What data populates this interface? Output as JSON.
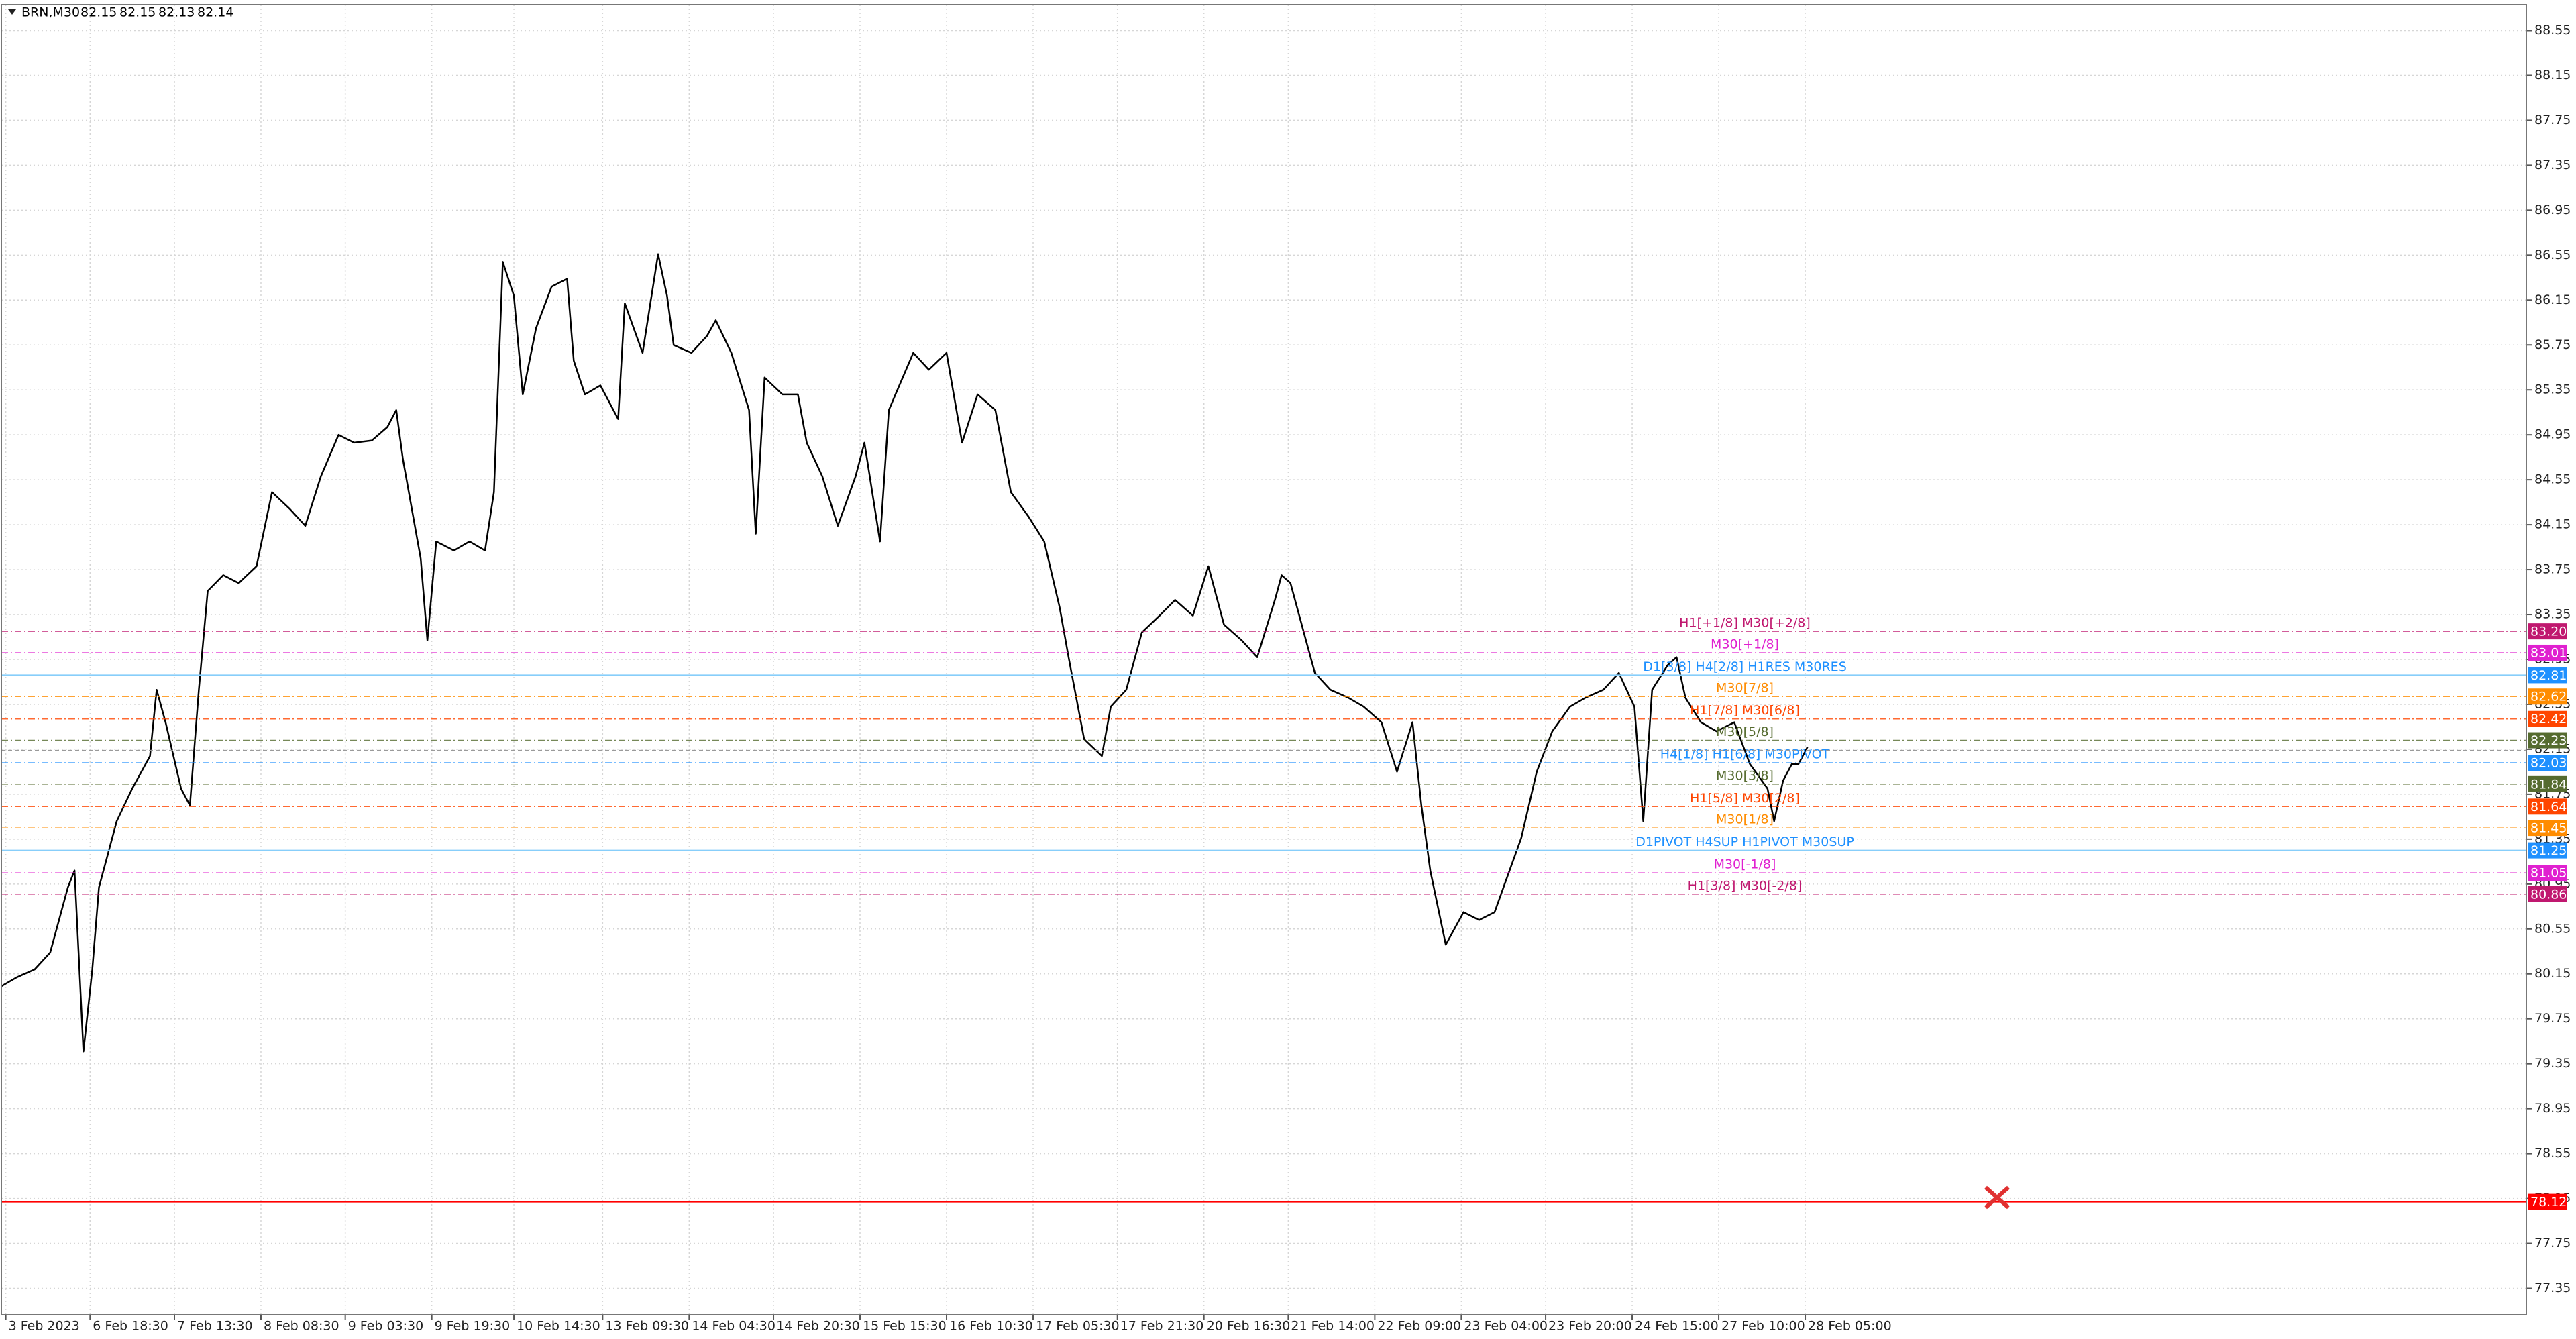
{
  "chart_data": {
    "type": "line",
    "title": "BRN,M30",
    "ohlc": [
      82.15,
      82.15,
      82.13,
      82.14
    ],
    "color": "#000000",
    "grid": true,
    "xlim": [
      0,
      1138
    ],
    "ylim": [
      77.12,
      88.78
    ],
    "xticks": [
      {
        "value": 2,
        "label": "3 Feb 2023"
      },
      {
        "value": 40,
        "label": "6 Feb 18:30"
      },
      {
        "value": 78,
        "label": "7 Feb 13:30"
      },
      {
        "value": 117,
        "label": "8 Feb 08:30"
      },
      {
        "value": 155,
        "label": "9 Feb 03:30"
      },
      {
        "value": 194,
        "label": "9 Feb 19:30"
      },
      {
        "value": 231,
        "label": "10 Feb 14:30"
      },
      {
        "value": 271,
        "label": "13 Feb 09:30"
      },
      {
        "value": 310,
        "label": "14 Feb 04:30"
      },
      {
        "value": 348,
        "label": "14 Feb 20:30"
      },
      {
        "value": 387,
        "label": "15 Feb 15:30"
      },
      {
        "value": 426,
        "label": "16 Feb 10:30"
      },
      {
        "value": 465,
        "label": "17 Feb 05:30"
      },
      {
        "value": 503,
        "label": "17 Feb 21:30"
      },
      {
        "value": 542,
        "label": "20 Feb 16:30"
      },
      {
        "value": 580,
        "label": "21 Feb 14:00"
      },
      {
        "value": 619,
        "label": "22 Feb 09:00"
      },
      {
        "value": 658,
        "label": "23 Feb 04:00"
      },
      {
        "value": 696,
        "label": "23 Feb 20:00"
      },
      {
        "value": 735,
        "label": "24 Feb 15:00"
      },
      {
        "value": 774,
        "label": "27 Feb 10:00"
      },
      {
        "value": 813,
        "label": "28 Feb 05:00"
      }
    ],
    "yticks": [
      88.55,
      88.15,
      87.75,
      87.35,
      86.95,
      86.55,
      86.15,
      85.75,
      85.35,
      84.95,
      84.55,
      84.15,
      83.75,
      83.35,
      82.95,
      82.55,
      82.15,
      81.75,
      81.35,
      80.95,
      80.55,
      80.15,
      79.75,
      79.35,
      78.95,
      78.55,
      78.15,
      77.75,
      77.35
    ],
    "x": [
      0,
      7,
      15,
      22,
      30,
      33,
      37,
      41,
      44,
      52,
      59,
      67,
      70,
      74,
      81,
      85,
      89,
      93,
      100,
      107,
      115,
      122,
      130,
      137,
      144,
      152,
      159,
      167,
      174,
      178,
      181,
      189,
      192,
      196,
      204,
      211,
      218,
      222,
      226,
      231,
      235,
      241,
      248,
      255,
      258,
      263,
      270,
      278,
      281,
      289,
      296,
      300,
      303,
      311,
      318,
      322,
      329,
      337,
      340,
      344,
      352,
      359,
      363,
      370,
      377,
      385,
      389,
      396,
      400,
      403,
      411,
      418,
      426,
      433,
      440,
      448,
      455,
      463,
      470,
      477,
      481,
      488,
      496,
      500,
      507,
      514,
      522,
      529,
      537,
      544,
      551,
      559,
      566,
      574,
      577,
      581,
      588,
      592,
      599,
      607,
      614,
      622,
      629,
      636,
      640,
      644,
      651,
      659,
      666,
      673,
      677,
      685,
      692,
      699,
      707,
      714,
      722,
      729,
      736,
      740,
      744,
      751,
      755,
      759,
      766,
      773,
      781,
      788,
      796,
      799,
      803,
      807,
      810,
      814
    ],
    "values": [
      80.04,
      80.12,
      80.19,
      80.34,
      80.92,
      81.07,
      79.46,
      80.19,
      80.92,
      81.51,
      81.8,
      82.09,
      82.68,
      82.39,
      81.8,
      81.65,
      82.68,
      83.56,
      83.7,
      83.63,
      83.78,
      84.44,
      84.29,
      84.14,
      84.58,
      84.95,
      84.88,
      84.9,
      85.02,
      85.17,
      84.73,
      83.85,
      83.12,
      84.0,
      83.92,
      84.0,
      83.92,
      84.44,
      86.49,
      86.19,
      85.31,
      85.9,
      86.27,
      86.34,
      85.61,
      85.31,
      85.39,
      85.09,
      86.12,
      85.68,
      86.56,
      86.19,
      85.75,
      85.68,
      85.83,
      85.97,
      85.68,
      85.17,
      84.07,
      85.46,
      85.31,
      85.31,
      84.88,
      84.58,
      84.14,
      84.58,
      84.88,
      84.0,
      85.17,
      85.31,
      85.68,
      85.53,
      85.68,
      84.88,
      85.31,
      85.17,
      84.44,
      84.22,
      84.0,
      83.41,
      82.97,
      82.24,
      82.09,
      82.53,
      82.68,
      83.19,
      83.34,
      83.48,
      83.34,
      83.78,
      83.26,
      83.12,
      82.97,
      83.48,
      83.7,
      83.63,
      83.12,
      82.83,
      82.68,
      82.61,
      82.53,
      82.39,
      81.95,
      82.39,
      81.65,
      81.07,
      80.41,
      80.7,
      80.63,
      80.7,
      80.92,
      81.36,
      81.95,
      82.31,
      82.53,
      82.61,
      82.68,
      82.83,
      82.53,
      81.51,
      82.68,
      82.9,
      82.97,
      82.61,
      82.39,
      82.31,
      82.39,
      82.02,
      81.8,
      81.51,
      81.87,
      82.02,
      82.02,
      82.17
    ],
    "levels": [
      {
        "label": "H1[+1/8] M30[+2/8]",
        "value": 83.2,
        "value_label": "83.20",
        "color": "#c0186f"
      },
      {
        "label": "M30[+1/8]",
        "value": 83.01,
        "color": "#e020d0"
      },
      {
        "label": "D1[3/8] H4[2/8] H1RES M30RES",
        "value": 82.81,
        "color": "#1e90ff",
        "line_color": "#87cefa",
        "solid": true
      },
      {
        "label": "M30[7/8]",
        "value": 82.62,
        "color": "#ff8c00"
      },
      {
        "label": "H1[7/8] M30[6/8]",
        "value": 82.42,
        "color": "#ff4500"
      },
      {
        "label": "M30[5/8]",
        "value": 82.23,
        "color": "#556b2f"
      },
      {
        "label": "H4[1/8] H1[6/8] M30PIVOT",
        "value": 82.03,
        "value_label": "82.03",
        "color": "#1e90ff"
      },
      {
        "label": "M30[3/8]",
        "value": 81.84,
        "color": "#556b2f"
      },
      {
        "label": "H1[5/8] M30[2/8]",
        "value": 81.64,
        "color": "#ff4500"
      },
      {
        "label": "M30[1/8]",
        "value": 81.45,
        "color": "#ff8c00"
      },
      {
        "label": "D1PIVOT H4SUP H1PIVOT M30SUP",
        "value": 81.25,
        "color": "#1e90ff",
        "line_color": "#87cefa",
        "solid": true
      },
      {
        "label": "M30[-1/8]",
        "value": 81.05,
        "color": "#e020d0"
      },
      {
        "label": "H1[3/8] M30[-2/8]",
        "value": 80.86,
        "color": "#c0186f"
      }
    ],
    "stop_level": {
      "value": 78.12,
      "color": "#ff0000"
    }
  }
}
